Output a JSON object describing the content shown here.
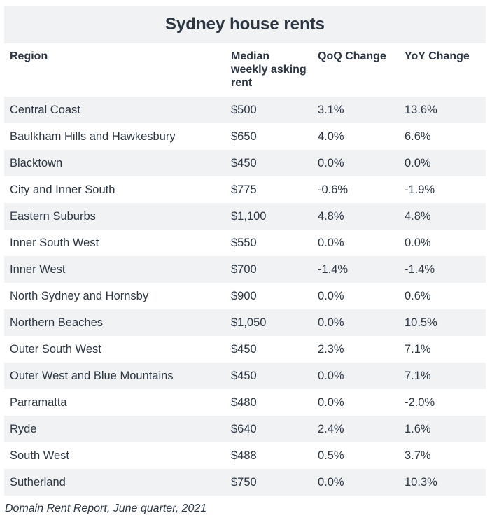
{
  "title": "Sydney house rents",
  "columns": [
    "Region",
    "Median\nweekly asking\nrent",
    "QoQ  Change",
    "YoY  Change"
  ],
  "rows": [
    [
      "Central Coast",
      "$500",
      "3.1%",
      "13.6%"
    ],
    [
      "Baulkham Hills and Hawkesbury",
      "$650",
      "4.0%",
      "6.6%"
    ],
    [
      "Blacktown",
      "$450",
      "0.0%",
      "0.0%"
    ],
    [
      "City and Inner South",
      "$775",
      "-0.6%",
      "-1.9%"
    ],
    [
      "Eastern Suburbs",
      "$1,100",
      "4.8%",
      "4.8%"
    ],
    [
      "Inner South West",
      "$550",
      "0.0%",
      "0.0%"
    ],
    [
      "Inner West",
      "$700",
      "-1.4%",
      "-1.4%"
    ],
    [
      "North Sydney and Hornsby",
      "$900",
      "0.0%",
      "0.6%"
    ],
    [
      "Northern Beaches",
      "$1,050",
      "0.0%",
      "10.5%"
    ],
    [
      "Outer South West",
      "$450",
      "2.3%",
      "7.1%"
    ],
    [
      "Outer West and Blue Mountains",
      "$450",
      "0.0%",
      "7.1%"
    ],
    [
      "Parramatta",
      "$480",
      "0.0%",
      "-2.0%"
    ],
    [
      "Ryde",
      "$640",
      "2.4%",
      "1.6%"
    ],
    [
      "South West",
      "$488",
      "0.5%",
      "3.7%"
    ],
    [
      "Sutherland",
      "$750",
      "0.0%",
      "10.3%"
    ]
  ],
  "source": "Domain Rent Report, June quarter, 2021"
}
